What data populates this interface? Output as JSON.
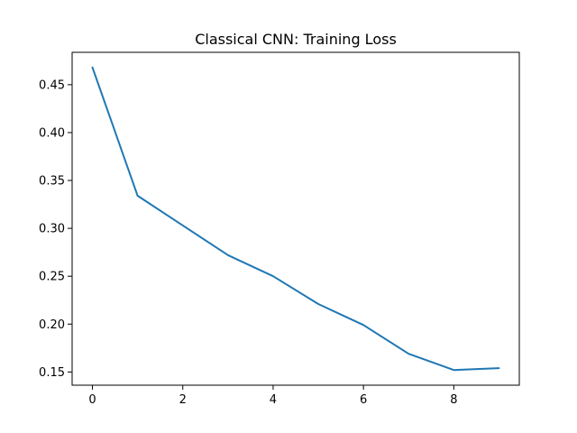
{
  "chart_data": {
    "type": "line",
    "title": "Classical CNN: Training Loss",
    "xlabel": "",
    "ylabel": "",
    "x": [
      0,
      1,
      2,
      3,
      4,
      5,
      6,
      7,
      8,
      9
    ],
    "series": [
      {
        "values": [
          0.468,
          0.334,
          0.303,
          0.272,
          0.25,
          0.221,
          0.199,
          0.169,
          0.152,
          0.154
        ],
        "color": "#1f77b4"
      }
    ],
    "xlim": [
      -0.45,
      9.45
    ],
    "ylim": [
      0.1362,
      0.4838
    ],
    "xticks": [
      0,
      2,
      4,
      6,
      8
    ],
    "xtick_labels": [
      "0",
      "2",
      "4",
      "6",
      "8"
    ],
    "yticks": [
      0.15,
      0.2,
      0.25,
      0.3,
      0.35,
      0.4,
      0.45
    ],
    "ytick_labels": [
      "0.15",
      "0.20",
      "0.25",
      "0.30",
      "0.35",
      "0.40",
      "0.45"
    ],
    "grid": false,
    "legend": "none"
  }
}
